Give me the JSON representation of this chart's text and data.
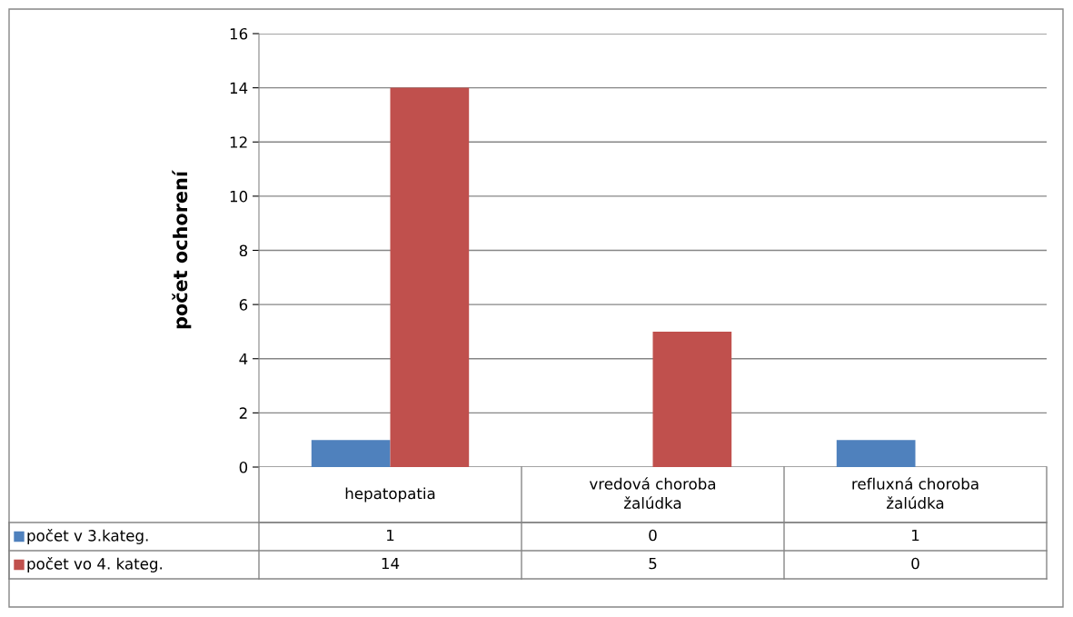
{
  "chart_data": {
    "type": "bar",
    "ylabel": "počet ochorení",
    "categories": [
      "hepatopatia",
      "vredová choroba\nžalúdka",
      "refluxná choroba\nžalúdka"
    ],
    "series": [
      {
        "name": "počet v 3.kateg.",
        "color": "#4f81bd",
        "values": [
          1,
          0,
          1
        ]
      },
      {
        "name": "počet vo 4. kateg.",
        "color": "#c0504d",
        "values": [
          14,
          5,
          0
        ]
      }
    ],
    "ylim": [
      0,
      16
    ],
    "yticks": [
      0,
      2,
      4,
      6,
      8,
      10,
      12,
      14,
      16
    ],
    "grid": "y",
    "legend": "bottom",
    "data_labels": true
  }
}
